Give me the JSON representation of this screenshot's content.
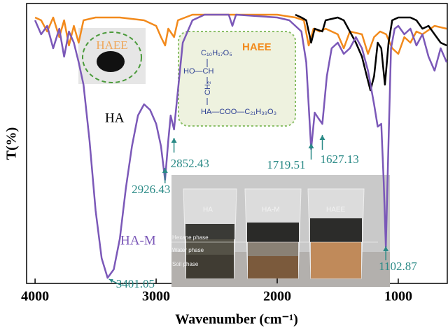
{
  "chart_data": {
    "type": "line",
    "x_label": "Wavenumber (cm⁻¹)",
    "y_label": "T(%)",
    "xlim": [
      4070,
      595
    ],
    "ylim": [
      0,
      100
    ],
    "xticks": [
      4000,
      3000,
      2000,
      1000
    ],
    "series": [
      {
        "name": "HA",
        "color": "#000000",
        "x": [
          1850,
          1800,
          1760,
          1719.51,
          1690,
          1627,
          1600,
          1500,
          1450,
          1400,
          1350,
          1300,
          1260,
          1230,
          1200,
          1170,
          1140,
          1110,
          1080,
          1050,
          1000,
          900,
          850,
          800,
          750,
          700,
          650,
          600
        ],
        "values": [
          96,
          95,
          94,
          86,
          91,
          90,
          94,
          95,
          94,
          90,
          86,
          81,
          74,
          69,
          74,
          86,
          84,
          71,
          86,
          94,
          95,
          95,
          94,
          91,
          92,
          89,
          86,
          85
        ]
      },
      {
        "name": "HA-M",
        "color": "#7b58b8",
        "x": [
          4000,
          3950,
          3900,
          3850,
          3800,
          3760,
          3720,
          3680,
          3640,
          3600,
          3550,
          3500,
          3450,
          3401.05,
          3350,
          3300,
          3250,
          3200,
          3150,
          3100,
          3050,
          3000,
          2960,
          2926.43,
          2900,
          2880,
          2852.43,
          2820,
          2780,
          2700,
          2600,
          2400,
          2370,
          2340,
          2000,
          1900,
          1800,
          1760,
          1719.51,
          1690,
          1660,
          1627.13,
          1590,
          1550,
          1500,
          1450,
          1400,
          1350,
          1300,
          1250,
          1200,
          1170,
          1140,
          1120,
          1102.87,
          1080,
          1060,
          1030,
          1000,
          950,
          900,
          850,
          800,
          750,
          700,
          650,
          600
        ],
        "values": [
          94,
          89,
          92,
          84,
          91,
          81,
          90,
          86,
          79,
          71,
          51,
          26,
          9,
          2,
          5,
          16,
          34,
          49,
          60,
          64,
          62,
          57,
          49,
          37,
          51,
          60,
          55,
          69,
          86,
          94,
          96,
          96,
          92,
          96,
          95,
          94,
          90,
          79,
          48,
          61,
          59,
          57,
          74,
          84,
          86,
          82,
          84,
          88,
          84,
          76,
          64,
          56,
          57,
          36,
          13,
          51,
          84,
          91,
          92,
          89,
          91,
          85,
          89,
          81,
          76,
          84,
          79
        ]
      },
      {
        "name": "HAEE",
        "color": "#f28a1c",
        "x": [
          4000,
          3950,
          3900,
          3850,
          3800,
          3760,
          3720,
          3680,
          3640,
          3600,
          3500,
          3300,
          3100,
          3000,
          2960,
          2926,
          2900,
          2852,
          2820,
          2700,
          2000,
          1850,
          1780,
          1740,
          1700,
          1650,
          1600,
          1500,
          1450,
          1400,
          1300,
          1250,
          1200,
          1150,
          1100,
          1050,
          1000,
          950,
          900,
          850,
          800,
          700,
          600
        ],
        "values": [
          95,
          94,
          90,
          95,
          88,
          94,
          85,
          92,
          86,
          94,
          95,
          95,
          94,
          92,
          88,
          85,
          91,
          88,
          94,
          96,
          96,
          95,
          94,
          85,
          91,
          90,
          91,
          89,
          84,
          90,
          89,
          82,
          88,
          90,
          89,
          84,
          82,
          88,
          86,
          90,
          89,
          92,
          91
        ]
      }
    ],
    "peaks": [
      3401.05,
      2926.43,
      2852.43,
      1719.51,
      1627.13,
      1102.87
    ]
  },
  "inset_photo": {
    "phases": [
      "Hexane phase",
      "Water phase",
      "Soil phase"
    ]
  },
  "structure": {
    "lines": [
      "C₁₀H₁₇O₅",
      "HO—CH",
      "CH₂",
      "HA—COO—C₂₁H₃₉O₃"
    ]
  }
}
